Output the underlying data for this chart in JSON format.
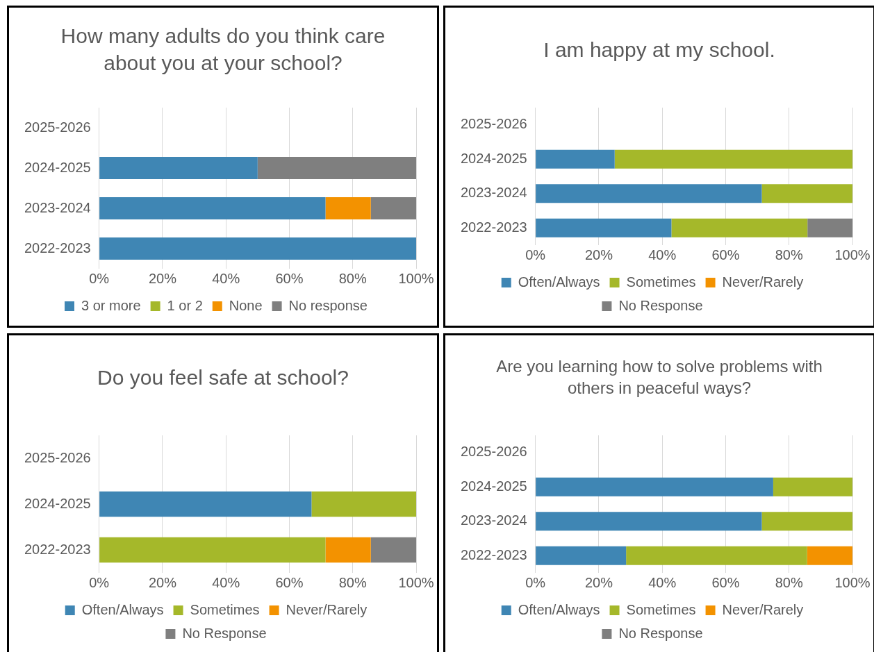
{
  "chart_data": [
    {
      "type": "bar",
      "orientation": "horizontal",
      "stacked": true,
      "title": "How many adults do you think care about you at your school?",
      "categories": [
        "2025-2026",
        "2024-2025",
        "2023-2024",
        "2022-2023"
      ],
      "series": [
        {
          "name": "3 or more",
          "color": "#3f86b4",
          "values": [
            null,
            50,
            71.4,
            100
          ]
        },
        {
          "name": "1 or 2",
          "color": "#a5b82a",
          "values": [
            null,
            0,
            0,
            0
          ]
        },
        {
          "name": "None",
          "color": "#f39200",
          "values": [
            null,
            0,
            14.3,
            0
          ]
        },
        {
          "name": "No response",
          "color": "#7f7f7f",
          "values": [
            null,
            50,
            14.3,
            0
          ]
        }
      ],
      "xlim": [
        0,
        100
      ],
      "xticks": [
        {
          "value": 0,
          "label": "0%"
        },
        {
          "value": 20,
          "label": "20%"
        },
        {
          "value": 40,
          "label": "40%"
        },
        {
          "value": 60,
          "label": "60%"
        },
        {
          "value": 80,
          "label": "80%"
        },
        {
          "value": 100,
          "label": "100%"
        }
      ],
      "grid": "x",
      "legend": "bottom"
    },
    {
      "type": "bar",
      "orientation": "horizontal",
      "stacked": true,
      "title": "I am happy at my school.",
      "categories": [
        "2025-2026",
        "2024-2025",
        "2023-2024",
        "2022-2023"
      ],
      "series": [
        {
          "name": "Often/Always",
          "color": "#3f86b4",
          "values": [
            null,
            25,
            71.4,
            42.9
          ]
        },
        {
          "name": "Sometimes",
          "color": "#a5b82a",
          "values": [
            null,
            75,
            28.6,
            42.9
          ]
        },
        {
          "name": "Never/Rarely",
          "color": "#f39200",
          "values": [
            null,
            0,
            0,
            0
          ]
        },
        {
          "name": "No Response",
          "color": "#7f7f7f",
          "values": [
            null,
            0,
            0,
            14.3
          ]
        }
      ],
      "xlim": [
        0,
        100
      ],
      "xticks": [
        {
          "value": 0,
          "label": "0%"
        },
        {
          "value": 20,
          "label": "20%"
        },
        {
          "value": 40,
          "label": "40%"
        },
        {
          "value": 60,
          "label": "60%"
        },
        {
          "value": 80,
          "label": "80%"
        },
        {
          "value": 100,
          "label": "100%"
        }
      ],
      "grid": "x",
      "legend": "bottom"
    },
    {
      "type": "bar",
      "orientation": "horizontal",
      "stacked": true,
      "title": "Do you feel safe at school?",
      "categories": [
        "2025-2026",
        "2024-2025",
        "2022-2023"
      ],
      "series": [
        {
          "name": "Often/Always",
          "color": "#3f86b4",
          "values": [
            null,
            67,
            0
          ]
        },
        {
          "name": "Sometimes",
          "color": "#a5b82a",
          "values": [
            null,
            33,
            71.4
          ]
        },
        {
          "name": "Never/Rarely",
          "color": "#f39200",
          "values": [
            null,
            0,
            14.3
          ]
        },
        {
          "name": "No Response",
          "color": "#7f7f7f",
          "values": [
            null,
            0,
            14.3
          ]
        }
      ],
      "xlim": [
        0,
        100
      ],
      "xticks": [
        {
          "value": 0,
          "label": "0%"
        },
        {
          "value": 20,
          "label": "20%"
        },
        {
          "value": 40,
          "label": "40%"
        },
        {
          "value": 60,
          "label": "60%"
        },
        {
          "value": 80,
          "label": "80%"
        },
        {
          "value": 100,
          "label": "100%"
        }
      ],
      "grid": "x",
      "legend": "bottom"
    },
    {
      "type": "bar",
      "orientation": "horizontal",
      "stacked": true,
      "title": "Are you learning how to solve problems with others in peaceful ways?",
      "categories": [
        "2025-2026",
        "2024-2025",
        "2023-2024",
        "2022-2023"
      ],
      "series": [
        {
          "name": "Often/Always",
          "color": "#3f86b4",
          "values": [
            null,
            75,
            71.4,
            28.6
          ]
        },
        {
          "name": "Sometimes",
          "color": "#a5b82a",
          "values": [
            null,
            25,
            28.6,
            57.1
          ]
        },
        {
          "name": "Never/Rarely",
          "color": "#f39200",
          "values": [
            null,
            0,
            0,
            14.3
          ]
        },
        {
          "name": "No Response",
          "color": "#7f7f7f",
          "values": [
            null,
            0,
            0,
            0
          ]
        }
      ],
      "xlim": [
        0,
        100
      ],
      "xticks": [
        {
          "value": 0,
          "label": "0%"
        },
        {
          "value": 20,
          "label": "20%"
        },
        {
          "value": 40,
          "label": "40%"
        },
        {
          "value": 60,
          "label": "60%"
        },
        {
          "value": 80,
          "label": "80%"
        },
        {
          "value": 100,
          "label": "100%"
        }
      ],
      "grid": "x",
      "legend": "bottom"
    }
  ]
}
